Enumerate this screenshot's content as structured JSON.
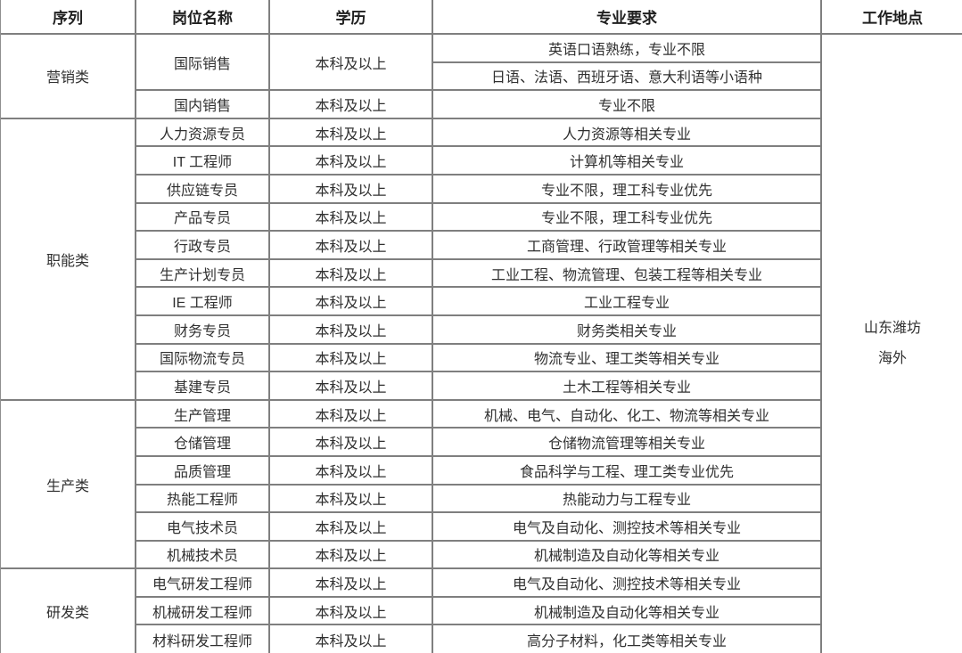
{
  "colors": {
    "background": "#ffffff",
    "grid_border": "#7f7f7f",
    "text": "#303030",
    "header_text": "#1f1f1f"
  },
  "table": {
    "headers": [
      "序列",
      "岗位名称",
      "学历",
      "专业要求",
      "工作地点"
    ],
    "location": {
      "line1": "山东潍坊",
      "line2": "海外"
    },
    "sections": [
      {
        "category": "营销类",
        "positions": [
          {
            "name": "国际销售",
            "education": "本科及以上",
            "requirements": [
              "英语口语熟练，专业不限",
              "日语、法语、西班牙语、意大利语等小语种"
            ]
          },
          {
            "name": "国内销售",
            "education": "本科及以上",
            "requirements": [
              "专业不限"
            ]
          }
        ]
      },
      {
        "category": "职能类",
        "positions": [
          {
            "name": "人力资源专员",
            "education": "本科及以上",
            "requirements": [
              "人力资源等相关专业"
            ]
          },
          {
            "name": "IT 工程师",
            "education": "本科及以上",
            "requirements": [
              "计算机等相关专业"
            ]
          },
          {
            "name": "供应链专员",
            "education": "本科及以上",
            "requirements": [
              "专业不限，理工科专业优先"
            ]
          },
          {
            "name": "产品专员",
            "education": "本科及以上",
            "requirements": [
              "专业不限，理工科专业优先"
            ]
          },
          {
            "name": "行政专员",
            "education": "本科及以上",
            "requirements": [
              "工商管理、行政管理等相关专业"
            ]
          },
          {
            "name": "生产计划专员",
            "education": "本科及以上",
            "requirements": [
              "工业工程、物流管理、包装工程等相关专业"
            ]
          },
          {
            "name": "IE 工程师",
            "education": "本科及以上",
            "requirements": [
              "工业工程专业"
            ]
          },
          {
            "name": "财务专员",
            "education": "本科及以上",
            "requirements": [
              "财务类相关专业"
            ]
          },
          {
            "name": "国际物流专员",
            "education": "本科及以上",
            "requirements": [
              "物流专业、理工类等相关专业"
            ]
          },
          {
            "name": "基建专员",
            "education": "本科及以上",
            "requirements": [
              "土木工程等相关专业"
            ]
          }
        ]
      },
      {
        "category": "生产类",
        "positions": [
          {
            "name": "生产管理",
            "education": "本科及以上",
            "requirements": [
              "机械、电气、自动化、化工、物流等相关专业"
            ]
          },
          {
            "name": "仓储管理",
            "education": "本科及以上",
            "requirements": [
              "仓储物流管理等相关专业"
            ]
          },
          {
            "name": "品质管理",
            "education": "本科及以上",
            "requirements": [
              "食品科学与工程、理工类专业优先"
            ]
          },
          {
            "name": "热能工程师",
            "education": "本科及以上",
            "requirements": [
              "热能动力与工程专业"
            ]
          },
          {
            "name": "电气技术员",
            "education": "本科及以上",
            "requirements": [
              "电气及自动化、测控技术等相关专业"
            ]
          },
          {
            "name": "机械技术员",
            "education": "本科及以上",
            "requirements": [
              "机械制造及自动化等相关专业"
            ]
          }
        ]
      },
      {
        "category": "研发类",
        "positions": [
          {
            "name": "电气研发工程师",
            "education": "本科及以上",
            "requirements": [
              "电气及自动化、测控技术等相关专业"
            ]
          },
          {
            "name": "机械研发工程师",
            "education": "本科及以上",
            "requirements": [
              "机械制造及自动化等相关专业"
            ]
          },
          {
            "name": "材料研发工程师",
            "education": "本科及以上",
            "requirements": [
              "高分子材料，化工类等相关专业"
            ]
          }
        ]
      }
    ]
  }
}
